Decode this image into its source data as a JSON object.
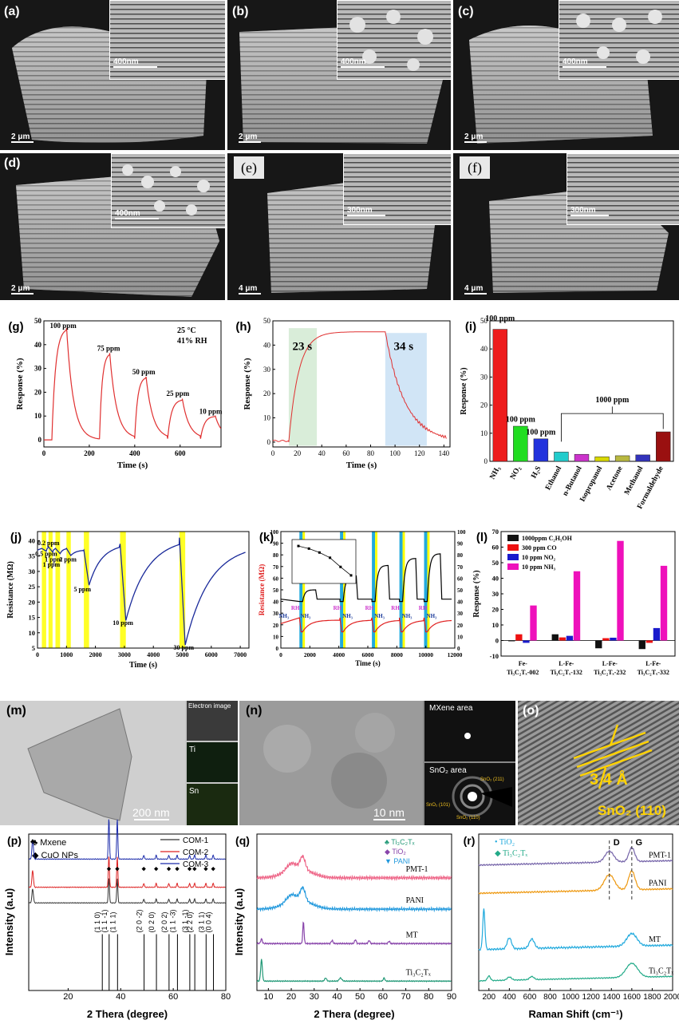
{
  "panels": {
    "a": {
      "label": "(a)",
      "scale": "2 μm",
      "inset_scale": "400nm"
    },
    "b": {
      "label": "(b)",
      "scale": "2 μm",
      "inset_scale": "400nm"
    },
    "c": {
      "label": "(c)",
      "scale": "2 μm",
      "inset_scale": "400nm"
    },
    "d": {
      "label": "(d)",
      "scale": "2 μm",
      "inset_scale": "400nm"
    },
    "e": {
      "label": "(e)",
      "scale": "4 μm",
      "inset_scale": "300nm"
    },
    "f": {
      "label": "(f)",
      "scale": "4 μm",
      "inset_scale": "300nm"
    },
    "m": {
      "label": "(m)",
      "scale": "200 nm",
      "maps": [
        "Electron image",
        "Ti",
        "Sn"
      ]
    },
    "n": {
      "label": "(n)",
      "scale": "10 nm",
      "areas": [
        "MXene area",
        "SnO₂ area"
      ],
      "rings": [
        "SnO₂ (211)",
        "SnO₂ (101)",
        "SnO₂ (110)"
      ]
    },
    "o": {
      "label": "(o)",
      "spacing": "3.4 Å",
      "plane": "SnO₂ (110)"
    }
  },
  "chart_data": [
    {
      "id": "g",
      "label": "(g)",
      "type": "line",
      "xlabel": "Time (s)",
      "ylabel": "Response (%)",
      "xlim": [
        0,
        780
      ],
      "ylim": [
        -3,
        50
      ],
      "xticks": [
        0,
        200,
        400,
        600
      ],
      "yticks": [
        0,
        10,
        20,
        30,
        40,
        50
      ],
      "conditions": [
        "25 °C",
        "41% RH"
      ],
      "annotations": [
        {
          "text": "100 ppm",
          "x": 85,
          "y": 47
        },
        {
          "text": "75 ppm",
          "x": 285,
          "y": 37.5
        },
        {
          "text": "50 ppm",
          "x": 440,
          "y": 27.5
        },
        {
          "text": "25 ppm",
          "x": 590,
          "y": 18.5
        },
        {
          "text": "10 ppm",
          "x": 735,
          "y": 11
        }
      ],
      "pulses": [
        {
          "on": 35,
          "off": 100,
          "peak": 47,
          "base": 0
        },
        {
          "on": 245,
          "off": 290,
          "peak": 36.5,
          "base": 0.5
        },
        {
          "on": 400,
          "off": 450,
          "peak": 26.5,
          "base": 0.5
        },
        {
          "on": 545,
          "off": 610,
          "peak": 17,
          "base": 0.5
        },
        {
          "on": 690,
          "off": 755,
          "peak": 10,
          "base": 0.5
        }
      ],
      "color": "#e03030"
    },
    {
      "id": "h",
      "label": "(h)",
      "type": "line",
      "xlabel": "Time (s)",
      "ylabel": "Response (%)",
      "xlim": [
        0,
        145
      ],
      "ylim": [
        -2,
        50
      ],
      "xticks": [
        0,
        20,
        40,
        60,
        80,
        100,
        120,
        140
      ],
      "yticks": [
        0,
        10,
        20,
        30,
        40,
        50
      ],
      "response_time": "23 s",
      "recovery_time": "34 s",
      "response_window": [
        13,
        36
      ],
      "recovery_window": [
        92,
        126
      ],
      "on": 13,
      "off": 92,
      "peak": 45.5,
      "color": "#e03030"
    },
    {
      "id": "i",
      "label": "(i)",
      "type": "bar",
      "ylabel": "Response (%)",
      "ylim": [
        0,
        50
      ],
      "yticks": [
        0,
        10,
        20,
        30,
        40,
        50
      ],
      "categories": [
        "NH₃",
        "NO₂",
        "H₂S",
        "Ethanol",
        "n-Butanol",
        "Isopropanol",
        "Acetone",
        "Methanol",
        "Formaldehyde"
      ],
      "values": [
        47,
        12.5,
        8,
        3.3,
        2.5,
        1.6,
        2,
        2.3,
        10.5
      ],
      "colors": [
        "#ee1c1c",
        "#21dd21",
        "#2233dd",
        "#22cccc",
        "#cc33cc",
        "#d8d800",
        "#b8b840",
        "#3333bb",
        "#9a1010"
      ],
      "annotations": [
        {
          "text": "100 ppm",
          "category": 0,
          "y": 50
        },
        {
          "text": "100 ppm",
          "category": 1,
          "y": 14
        },
        {
          "text": "100 ppm",
          "category": 2,
          "y": 9.5
        },
        {
          "text": "1000 ppm",
          "category": 5.5,
          "y": 21
        }
      ]
    },
    {
      "id": "j",
      "label": "(j)",
      "type": "line",
      "xlabel": "Time (s)",
      "ylabel": "Resistance (MΩ)",
      "xlim": [
        0,
        7300
      ],
      "ylim": [
        5,
        43
      ],
      "xticks": [
        0,
        1000,
        2000,
        3000,
        4000,
        5000,
        6000,
        7000
      ],
      "yticks": [
        5,
        10,
        15,
        20,
        25,
        30,
        35,
        40
      ],
      "pulse_windows": [
        [
          150,
          300
        ],
        [
          380,
          520
        ],
        [
          620,
          780
        ],
        [
          1000,
          1150
        ],
        [
          1600,
          1780
        ],
        [
          2850,
          3050
        ],
        [
          4900,
          5100
        ]
      ],
      "annotations": [
        {
          "text": "0.2 ppm",
          "x": 380,
          "y": 38.6
        },
        {
          "text": "0.5 ppm",
          "x": 300,
          "y": 35
        },
        {
          "text": "1 ppm",
          "x": 550,
          "y": 33.3
        },
        {
          "text": "1 ppm",
          "x": 480,
          "y": 31.5
        },
        {
          "text": "2 ppm",
          "x": 1050,
          "y": 33.3
        },
        {
          "text": "5 ppm",
          "x": 1550,
          "y": 23.5
        },
        {
          "text": "10 ppm",
          "x": 2950,
          "y": 12.5
        },
        {
          "text": "30 ppm",
          "x": 5050,
          "y": 4.5
        }
      ],
      "color": "#1a2a9a"
    },
    {
      "id": "k",
      "label": "(k)",
      "type": "line",
      "xlabel": "Time (s)",
      "ylabel": "Resistance (MΩ)",
      "xlim": [
        0,
        12000
      ],
      "ylim": [
        0,
        100
      ],
      "xticks": [
        0,
        2000,
        4000,
        6000,
        8000,
        10000,
        12000
      ],
      "yticks": [
        0,
        10,
        20,
        30,
        40,
        50,
        60,
        70,
        80,
        90,
        100
      ],
      "annotations": [
        "NH₃",
        "RH",
        "NH₃",
        "RH",
        "NH₃",
        "RH",
        "NH₃",
        "RH",
        "NH₃",
        "RH",
        "NH₃",
        "RH",
        "NH₃"
      ],
      "cycles": [
        1500,
        4300,
        6500,
        8400,
        10100
      ],
      "series": [
        {
          "color": "#000000"
        },
        {
          "color": "#e02020"
        }
      ]
    },
    {
      "id": "l",
      "label": "(l)",
      "type": "bar",
      "ylabel": "Response (%)",
      "ylim": [
        -10,
        70
      ],
      "yticks": [
        -10,
        0,
        10,
        20,
        30,
        40,
        50,
        60,
        70
      ],
      "categories": [
        "Fe-Ti₃C₂Tₓ-002",
        "L-Fe-Ti₃C₂Tₓ-132",
        "L-Fe-Ti₃C₂Tₓ-232",
        "L-Fe-Ti₃C₂Tₓ-332"
      ],
      "categories_line1": [
        "Fe-",
        "L-Fe-",
        "L-Fe-",
        "L-Fe-"
      ],
      "categories_line2": [
        "Ti₃C₂Tₓ-002",
        "Ti₃C₂Tₓ-132",
        "Ti₃C₂Tₓ-232",
        "Ti₃C₂Tₓ-332"
      ],
      "series": [
        {
          "name": "1000ppm C₂H₅OH",
          "color": "#111111",
          "values": [
            -0.5,
            4,
            -5,
            -5.5
          ]
        },
        {
          "name": "300 ppm CO",
          "color": "#ee1111",
          "values": [
            4,
            2,
            1.5,
            -1.5
          ]
        },
        {
          "name": "10 ppm NO₂",
          "color": "#1a1acc",
          "values": [
            -1.5,
            3,
            1.8,
            8
          ]
        },
        {
          "name": "10 ppm NH₃",
          "color": "#ee11bb",
          "values": [
            22.5,
            44.5,
            64,
            48
          ]
        }
      ]
    },
    {
      "id": "p",
      "label": "(p)",
      "type": "line",
      "xlabel": "2 Thera (degree)",
      "ylabel": "Intensity (a.u)",
      "xlim": [
        5,
        80
      ],
      "xticks": [
        20,
        40,
        60,
        80
      ],
      "legend_markers": [
        "♣ Mxene",
        "◆ CuO NPs"
      ],
      "series": [
        {
          "name": "COM-1",
          "color": "#333333"
        },
        {
          "name": "COM-2",
          "color": "#dd2222"
        },
        {
          "name": "COM-3",
          "color": "#1a2aaa"
        }
      ],
      "peaks": [
        6.5,
        35.5,
        38.7,
        48.8,
        53.5,
        58.3,
        61.5,
        66.2,
        68.1,
        72.4,
        75.2
      ],
      "hkl": [
        "(1 1 0)",
        "(1 1 -1)",
        "(1 1 1)",
        "(2 0 -2)",
        "(0 2 0)",
        "(2 0 2)",
        "(1 1 -3)",
        "(3 1 -1)",
        "(2 2 0)",
        "(3 1 1)",
        "(0 0 4)"
      ],
      "hkl_positions": [
        33,
        35.6,
        38.8,
        48.9,
        53.6,
        58.4,
        61.6,
        66.3,
        68.2,
        72.5,
        75.3
      ]
    },
    {
      "id": "q",
      "label": "(q)",
      "type": "line",
      "xlabel": "2 Thera (degree)",
      "ylabel": "Intensity (a.u)",
      "xlim": [
        5,
        90
      ],
      "xticks": [
        10,
        20,
        30,
        40,
        50,
        60,
        70,
        80,
        90
      ],
      "legend_markers": [
        "♣ Ti₃C₂Tₓ",
        "◆ TiO₂",
        "▼ PANI"
      ],
      "series": [
        {
          "name": "PMT-1",
          "color": "#ee6688"
        },
        {
          "name": "PANI",
          "color": "#2299dd"
        },
        {
          "name": "MT",
          "color": "#8844aa"
        },
        {
          "name": "Ti₃C₂Tₓ",
          "color": "#229977"
        }
      ]
    },
    {
      "id": "r",
      "label": "(r)",
      "type": "line",
      "xlabel": "Raman Shift (cm⁻¹)",
      "ylabel": "",
      "xlim": [
        100,
        2000
      ],
      "xticks": [
        200,
        400,
        600,
        800,
        1000,
        1200,
        1400,
        1600,
        1800,
        2000
      ],
      "legend_markers": [
        "• TiO₂",
        "◆ Ti₃C₂Tₓ"
      ],
      "bands": [
        "D",
        "G"
      ],
      "band_positions": [
        1380,
        1600
      ],
      "series": [
        {
          "name": "PMT-1",
          "color": "#7766aa"
        },
        {
          "name": "PANI",
          "color": "#ee9911"
        },
        {
          "name": "MT",
          "color": "#22aadd"
        },
        {
          "name": "Ti₃C₂Tₓ",
          "color": "#22aa88"
        }
      ]
    }
  ]
}
